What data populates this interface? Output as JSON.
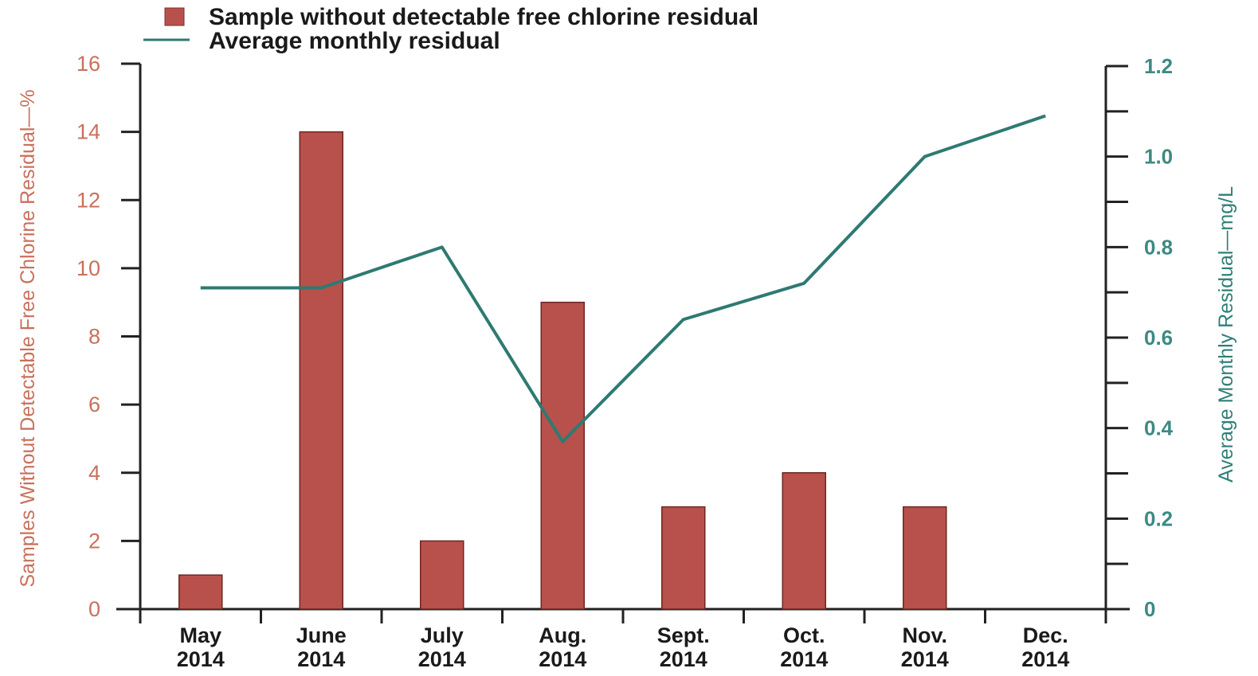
{
  "chart_data": {
    "type": "bar",
    "categories": [
      [
        "May",
        "2014"
      ],
      [
        "June",
        "2014"
      ],
      [
        "July",
        "2014"
      ],
      [
        "Aug.",
        "2014"
      ],
      [
        "Sept.",
        "2014"
      ],
      [
        "Oct.",
        "2014"
      ],
      [
        "Nov.",
        "2014"
      ],
      [
        "Dec.",
        "2014"
      ]
    ],
    "series": [
      {
        "name": "Sample without detectable free chlorine residual",
        "type": "bar",
        "axis": "left",
        "color": "#b8514b",
        "values": [
          1,
          14,
          2,
          9,
          3,
          4,
          3,
          null
        ]
      },
      {
        "name": "Average monthly residual",
        "type": "line",
        "axis": "right",
        "color": "#2e7a72",
        "values": [
          0.71,
          0.71,
          0.8,
          0.37,
          0.64,
          0.72,
          1.0,
          1.09
        ]
      }
    ],
    "ylabel_left": "Samples Without Detectable Free Chlorine Residual—%",
    "ylabel_right": "Average Monthly Residual—mg/L",
    "ylim_left": [
      0,
      16
    ],
    "ylim_right": [
      0,
      1.2
    ],
    "yticks_left": [
      "0",
      "2",
      "4",
      "6",
      "8",
      "10",
      "12",
      "14",
      "16"
    ],
    "yticks_right": [
      "0",
      "0.2",
      "0.4",
      "0.6",
      "0.8",
      "1.0",
      "1.2"
    ],
    "legend_placement": "top-left",
    "grid": false
  }
}
